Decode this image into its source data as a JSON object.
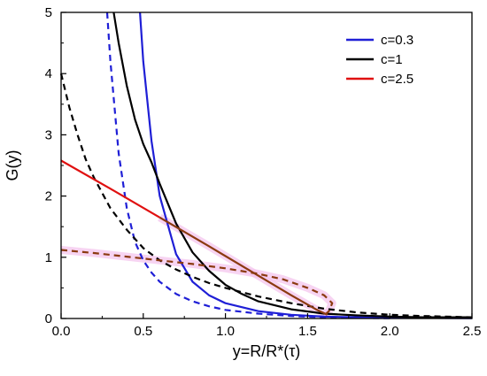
{
  "chart_data": {
    "type": "line",
    "title": "",
    "xlabel": "y=R/R*(τ)",
    "ylabel": "G(y)",
    "xlim": [
      0,
      2.5
    ],
    "ylim": [
      0,
      5
    ],
    "x_ticks": [
      "0.0",
      "0.5",
      "1.0",
      "1.5",
      "2.0",
      "2.5"
    ],
    "y_ticks": [
      "0",
      "1",
      "2",
      "3",
      "4",
      "5"
    ],
    "grid": false,
    "legend_position": "top-right",
    "legend": [
      {
        "label": "c=0.3",
        "color": "#1f1fd6"
      },
      {
        "label": "c=1",
        "color": "#000000"
      },
      {
        "label": "c=2.5",
        "color": "#e01010"
      }
    ],
    "series": [
      {
        "color": "#1f1fd6",
        "style": "solid",
        "points": [
          [
            0.48,
            5.0
          ],
          [
            0.5,
            4.2
          ],
          [
            0.55,
            2.9
          ],
          [
            0.6,
            2.0
          ],
          [
            0.7,
            1.05
          ],
          [
            0.8,
            0.6
          ],
          [
            0.9,
            0.38
          ],
          [
            1.0,
            0.25
          ],
          [
            1.2,
            0.12
          ],
          [
            1.4,
            0.06
          ],
          [
            1.6,
            0.03
          ],
          [
            1.8,
            0.02
          ],
          [
            2.0,
            0.01
          ],
          [
            2.2,
            0.01
          ],
          [
            2.5,
            0.005
          ]
        ]
      },
      {
        "color": "#1f1fd6",
        "style": "dashed",
        "points": [
          [
            0.28,
            5.0
          ],
          [
            0.3,
            4.2
          ],
          [
            0.35,
            2.7
          ],
          [
            0.4,
            1.8
          ],
          [
            0.45,
            1.25
          ],
          [
            0.5,
            0.95
          ],
          [
            0.55,
            0.75
          ],
          [
            0.6,
            0.6
          ],
          [
            0.7,
            0.4
          ],
          [
            0.8,
            0.28
          ],
          [
            0.9,
            0.2
          ],
          [
            1.0,
            0.14
          ],
          [
            1.2,
            0.08
          ],
          [
            1.4,
            0.04
          ],
          [
            1.6,
            0.02
          ],
          [
            1.8,
            0.01
          ],
          [
            2.0,
            0.005
          ]
        ]
      },
      {
        "color": "#000000",
        "style": "solid",
        "points": [
          [
            0.32,
            5.0
          ],
          [
            0.35,
            4.5
          ],
          [
            0.4,
            3.8
          ],
          [
            0.45,
            3.25
          ],
          [
            0.5,
            2.85
          ],
          [
            0.55,
            2.55
          ],
          [
            0.6,
            2.2
          ],
          [
            0.7,
            1.55
          ],
          [
            0.8,
            1.08
          ],
          [
            0.9,
            0.78
          ],
          [
            1.0,
            0.55
          ],
          [
            1.1,
            0.4
          ],
          [
            1.2,
            0.28
          ],
          [
            1.4,
            0.15
          ],
          [
            1.6,
            0.08
          ],
          [
            1.8,
            0.05
          ],
          [
            2.0,
            0.03
          ],
          [
            2.2,
            0.02
          ],
          [
            2.5,
            0.02
          ]
        ]
      },
      {
        "color": "#000000",
        "style": "dashed",
        "points": [
          [
            0.0,
            4.0
          ],
          [
            0.05,
            3.45
          ],
          [
            0.1,
            3.0
          ],
          [
            0.15,
            2.6
          ],
          [
            0.2,
            2.3
          ],
          [
            0.25,
            2.05
          ],
          [
            0.3,
            1.8
          ],
          [
            0.4,
            1.45
          ],
          [
            0.5,
            1.15
          ],
          [
            0.6,
            0.95
          ],
          [
            0.7,
            0.8
          ],
          [
            0.8,
            0.68
          ],
          [
            0.9,
            0.58
          ],
          [
            1.0,
            0.5
          ],
          [
            1.2,
            0.36
          ],
          [
            1.4,
            0.25
          ],
          [
            1.6,
            0.16
          ],
          [
            1.8,
            0.1
          ],
          [
            2.0,
            0.06
          ],
          [
            2.2,
            0.04
          ],
          [
            2.5,
            0.02
          ]
        ]
      },
      {
        "color": "#e01010",
        "style": "solid",
        "points": [
          [
            0.0,
            2.58
          ],
          [
            0.3,
            2.12
          ],
          [
            0.6,
            1.65
          ]
        ]
      },
      {
        "color": "#8b3a10",
        "style": "solid",
        "points": [
          [
            0.6,
            1.65
          ],
          [
            0.9,
            1.18
          ],
          [
            1.2,
            0.7
          ],
          [
            1.4,
            0.38
          ],
          [
            1.55,
            0.15
          ],
          [
            1.62,
            0.06
          ]
        ]
      },
      {
        "color": "#8b3a10",
        "style": "dashed",
        "points": [
          [
            0.0,
            1.12
          ],
          [
            0.2,
            1.07
          ],
          [
            0.4,
            1.01
          ],
          [
            0.6,
            0.95
          ],
          [
            0.8,
            0.89
          ],
          [
            1.0,
            0.82
          ],
          [
            1.2,
            0.73
          ],
          [
            1.35,
            0.64
          ],
          [
            1.5,
            0.5
          ],
          [
            1.6,
            0.38
          ],
          [
            1.65,
            0.25
          ],
          [
            1.63,
            0.12
          ],
          [
            1.6,
            0.05
          ]
        ]
      }
    ]
  }
}
